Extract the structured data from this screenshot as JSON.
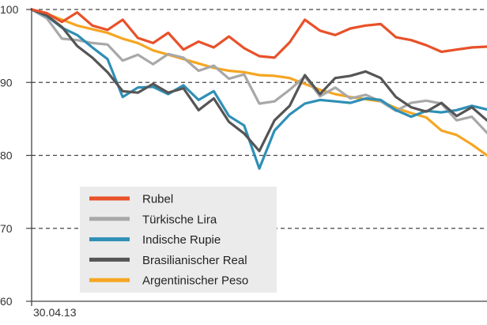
{
  "chart_data": {
    "type": "line",
    "title": "",
    "xlabel": "",
    "ylabel": "",
    "ylim": [
      60,
      100
    ],
    "yticks": [
      60,
      70,
      80,
      90,
      100
    ],
    "grid": "horizontal-dashed",
    "x_start_label": "30.04.13",
    "legend_position": "bottom-left",
    "colors": {
      "Rubel": "#e8512a",
      "Türkische Lira": "#a8a8a8",
      "Indische Rupie": "#2f8fb5",
      "Brasilianischer Real": "#555555",
      "Argentinischer Peso": "#f5a623"
    },
    "x": [
      0,
      4,
      8,
      12,
      16,
      20,
      24,
      28,
      32,
      36,
      40,
      44,
      48,
      52,
      56,
      60,
      64,
      68,
      72,
      76,
      80,
      84,
      88,
      92,
      96,
      100,
      104,
      108,
      112,
      116,
      120
    ],
    "series": [
      {
        "name": "Rubel",
        "values": [
          100,
          99.5,
          98.3,
          99.6,
          97.8,
          97.2,
          98.6,
          96.1,
          95.4,
          96.8,
          94.5,
          95.6,
          94.8,
          96.3,
          94.7,
          93.6,
          93.4,
          95.5,
          98.6,
          97.1,
          96.5,
          97.4,
          97.8,
          98.0,
          96.2,
          95.8,
          95.1,
          94.2,
          94.5,
          94.8,
          94.9
        ]
      },
      {
        "name": "Türkische Lira",
        "values": [
          100,
          98.8,
          96.0,
          95.8,
          95.4,
          95.2,
          93.0,
          93.8,
          92.5,
          93.9,
          93.4,
          91.6,
          92.3,
          90.5,
          91.1,
          87.1,
          87.4,
          89.0,
          90.8,
          88.1,
          89.3,
          87.8,
          88.3,
          87.4,
          86.1,
          87.2,
          87.5,
          87.1,
          84.8,
          85.3,
          83.1
        ]
      },
      {
        "name": "Indische Rupie",
        "values": [
          100,
          99.1,
          97.5,
          96.5,
          94.8,
          93.2,
          88.0,
          89.3,
          89.4,
          88.4,
          89.6,
          87.6,
          88.8,
          85.4,
          84.1,
          78.2,
          83.4,
          85.6,
          87.1,
          87.6,
          87.4,
          87.2,
          87.8,
          87.6,
          86.2,
          85.3,
          86.1,
          85.9,
          86.2,
          86.8,
          86.3
        ]
      },
      {
        "name": "Brasilianischer Real",
        "values": [
          100,
          99.2,
          97.6,
          95.0,
          93.4,
          91.4,
          88.8,
          88.6,
          89.8,
          88.6,
          89.2,
          86.2,
          87.8,
          84.6,
          83.0,
          80.6,
          84.8,
          86.8,
          91.0,
          88.4,
          90.6,
          90.9,
          91.5,
          90.6,
          88.0,
          86.6,
          86.0,
          87.2,
          85.4,
          86.6,
          84.8
        ]
      },
      {
        "name": "Argentinischer Peso",
        "values": [
          100,
          99.4,
          98.6,
          97.8,
          97.3,
          96.8,
          96.0,
          95.4,
          94.4,
          93.8,
          93.2,
          92.6,
          92.0,
          91.6,
          91.4,
          91.0,
          90.9,
          90.6,
          89.8,
          89.0,
          88.4,
          88.0,
          87.7,
          87.4,
          86.5,
          85.8,
          85.2,
          83.4,
          82.8,
          81.5,
          80.0
        ]
      }
    ]
  }
}
